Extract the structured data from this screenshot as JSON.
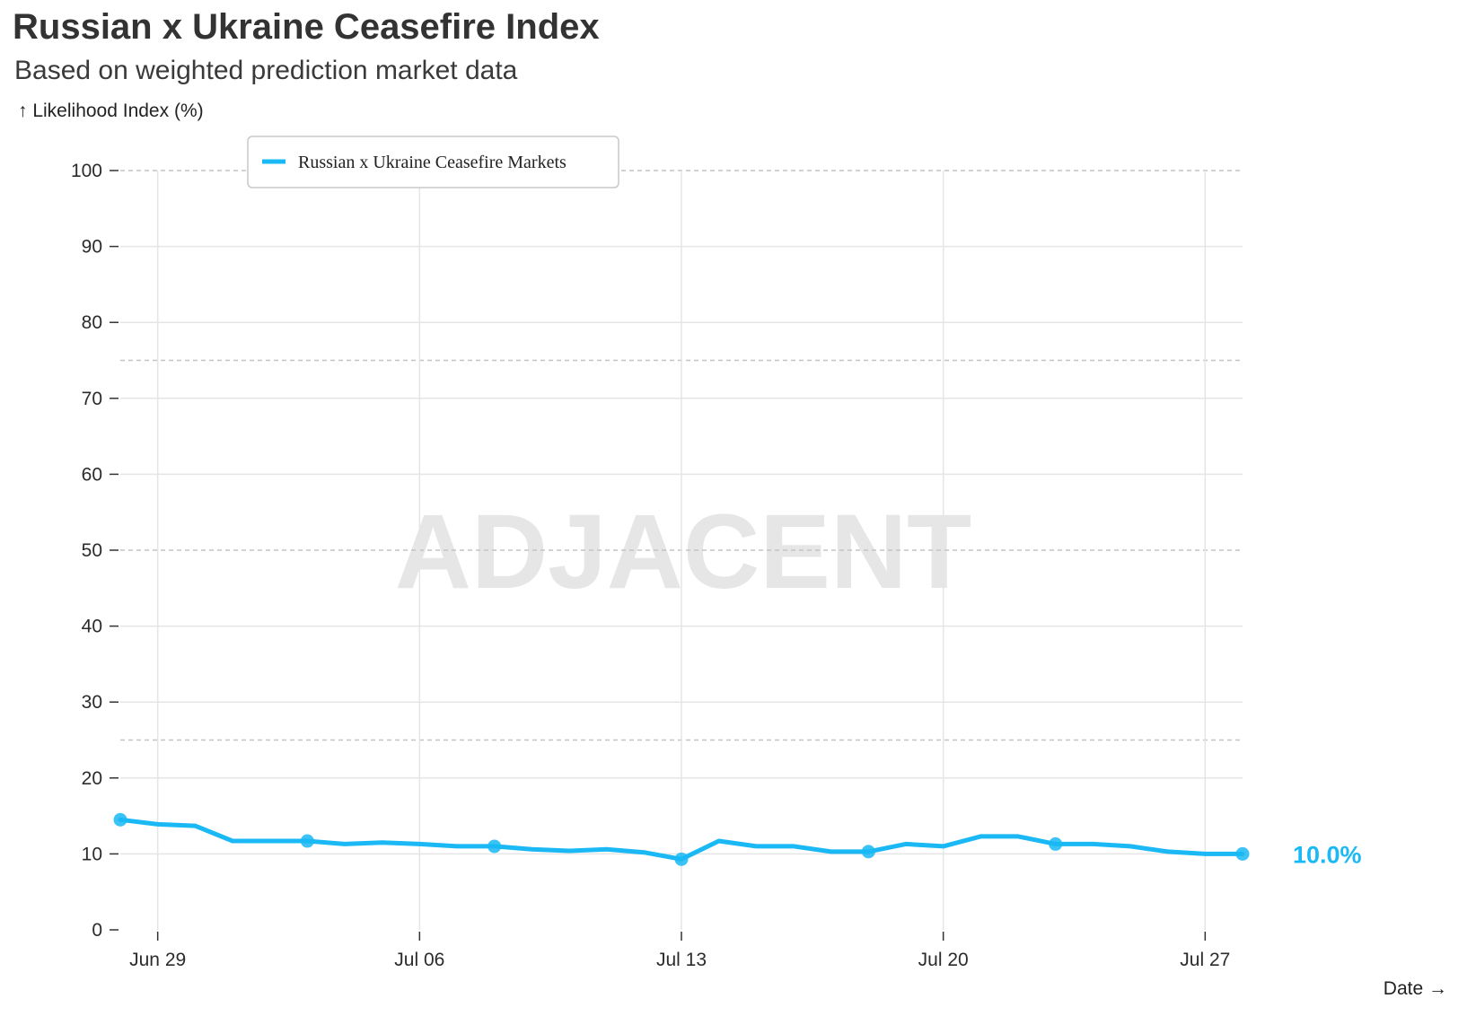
{
  "title": "Russian x Ukraine Ceasefire Index",
  "subtitle": "Based on weighted prediction market data",
  "y_axis_label": "↑ Likelihood Index (%)",
  "x_axis_label": "Date →",
  "watermark": "ADJACENT",
  "legend": {
    "label": "Russian x Ukraine Ceasefire Markets"
  },
  "last_value_label": "10.0%",
  "colors": {
    "line": "#1ab8f5",
    "grid": "#e5e5e5",
    "dashed": "#c4c4c4",
    "axis": "#333333"
  },
  "chart_data": {
    "type": "line",
    "title": "Russian x Ukraine Ceasefire Index",
    "subtitle": "Based on weighted prediction market data",
    "xlabel": "Date →",
    "ylabel": "↑ Likelihood Index (%)",
    "x_ticks": [
      "Jun 29",
      "Jul 06",
      "Jul 13",
      "Jul 20",
      "Jul 27"
    ],
    "y_ticks": [
      0,
      10,
      20,
      30,
      40,
      50,
      60,
      70,
      80,
      90,
      100
    ],
    "ylim": [
      0,
      100
    ],
    "xlim": [
      "2025-06-28",
      "2025-07-28"
    ],
    "dashed_reference_lines": [
      25,
      50,
      75,
      100
    ],
    "grid": true,
    "legend_position": "top-left",
    "series": [
      {
        "name": "Russian x Ukraine Ceasefire Markets",
        "color": "#1ab8f5",
        "points": [
          {
            "date": "2025-06-28",
            "value": 14.5,
            "marker": true
          },
          {
            "date": "2025-06-29",
            "value": 13.9
          },
          {
            "date": "2025-06-30",
            "value": 13.7
          },
          {
            "date": "2025-07-01",
            "value": 11.7
          },
          {
            "date": "2025-07-02",
            "value": 11.7
          },
          {
            "date": "2025-07-03",
            "value": 11.7,
            "marker": true
          },
          {
            "date": "2025-07-04",
            "value": 11.3
          },
          {
            "date": "2025-07-05",
            "value": 11.5
          },
          {
            "date": "2025-07-06",
            "value": 11.3
          },
          {
            "date": "2025-07-07",
            "value": 11.0
          },
          {
            "date": "2025-07-08",
            "value": 11.0,
            "marker": true
          },
          {
            "date": "2025-07-09",
            "value": 10.6
          },
          {
            "date": "2025-07-10",
            "value": 10.4
          },
          {
            "date": "2025-07-11",
            "value": 10.6
          },
          {
            "date": "2025-07-12",
            "value": 10.2
          },
          {
            "date": "2025-07-13",
            "value": 9.3,
            "marker": true
          },
          {
            "date": "2025-07-14",
            "value": 11.7
          },
          {
            "date": "2025-07-15",
            "value": 11.0
          },
          {
            "date": "2025-07-16",
            "value": 11.0
          },
          {
            "date": "2025-07-17",
            "value": 10.3
          },
          {
            "date": "2025-07-18",
            "value": 10.3,
            "marker": true
          },
          {
            "date": "2025-07-19",
            "value": 11.3
          },
          {
            "date": "2025-07-20",
            "value": 11.0
          },
          {
            "date": "2025-07-21",
            "value": 12.3
          },
          {
            "date": "2025-07-22",
            "value": 12.3
          },
          {
            "date": "2025-07-23",
            "value": 11.3,
            "marker": true
          },
          {
            "date": "2025-07-24",
            "value": 11.3
          },
          {
            "date": "2025-07-25",
            "value": 11.0
          },
          {
            "date": "2025-07-26",
            "value": 10.3
          },
          {
            "date": "2025-07-27",
            "value": 10.0
          },
          {
            "date": "2025-07-28",
            "value": 10.0,
            "marker": true
          }
        ]
      }
    ]
  }
}
